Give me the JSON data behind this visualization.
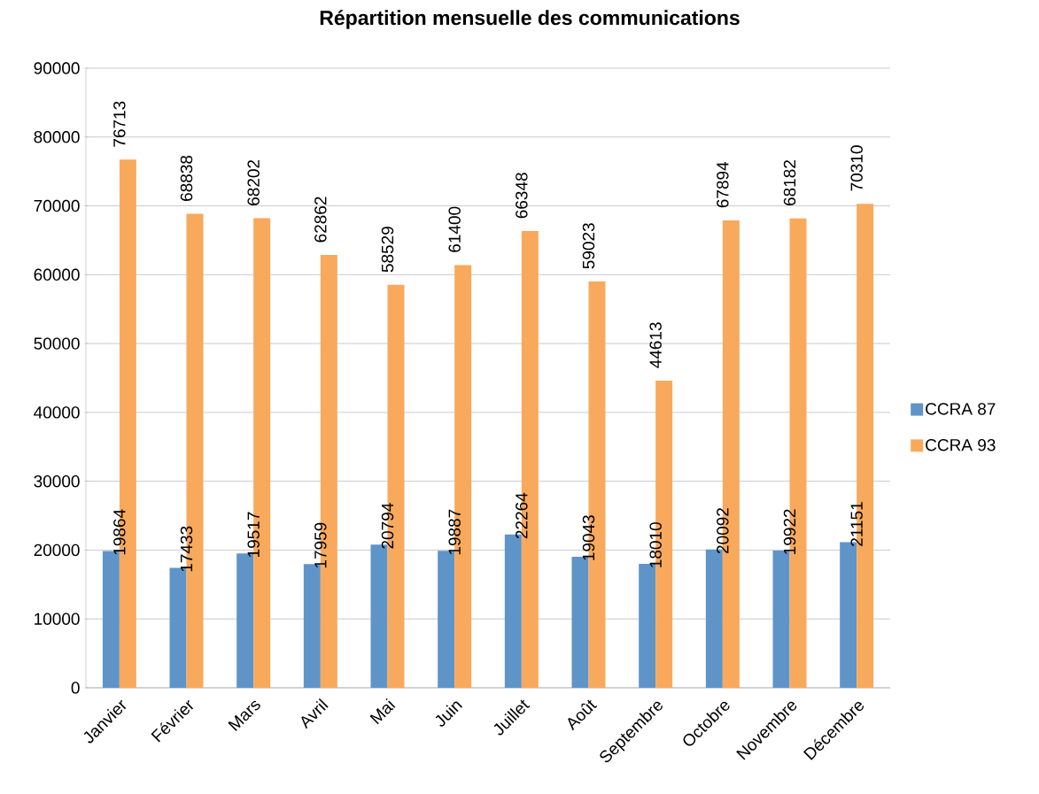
{
  "chart_data": {
    "type": "bar",
    "title": "Répartition mensuelle des communications",
    "categories": [
      "Janvier",
      "Février",
      "Mars",
      "Avril",
      "Mai",
      "Juin",
      "Juillet",
      "Août",
      "Septembre",
      "Octobre",
      "Novembre",
      "Décembre"
    ],
    "series": [
      {
        "name": "CCRA 87",
        "color": "#5f94c9",
        "values": [
          19864,
          17433,
          19517,
          17959,
          20794,
          19887,
          22264,
          19043,
          18010,
          20092,
          19922,
          21151
        ]
      },
      {
        "name": "CCRA 93",
        "color": "#f8a95b",
        "values": [
          76713,
          68838,
          68202,
          62862,
          58529,
          61400,
          66348,
          59023,
          44613,
          67894,
          68182,
          70310
        ]
      }
    ],
    "ylim": [
      0,
      90000
    ],
    "yticks": [
      0,
      10000,
      20000,
      30000,
      40000,
      50000,
      60000,
      70000,
      80000,
      90000
    ],
    "grid": "y",
    "legend": "right",
    "data_labels": true
  }
}
